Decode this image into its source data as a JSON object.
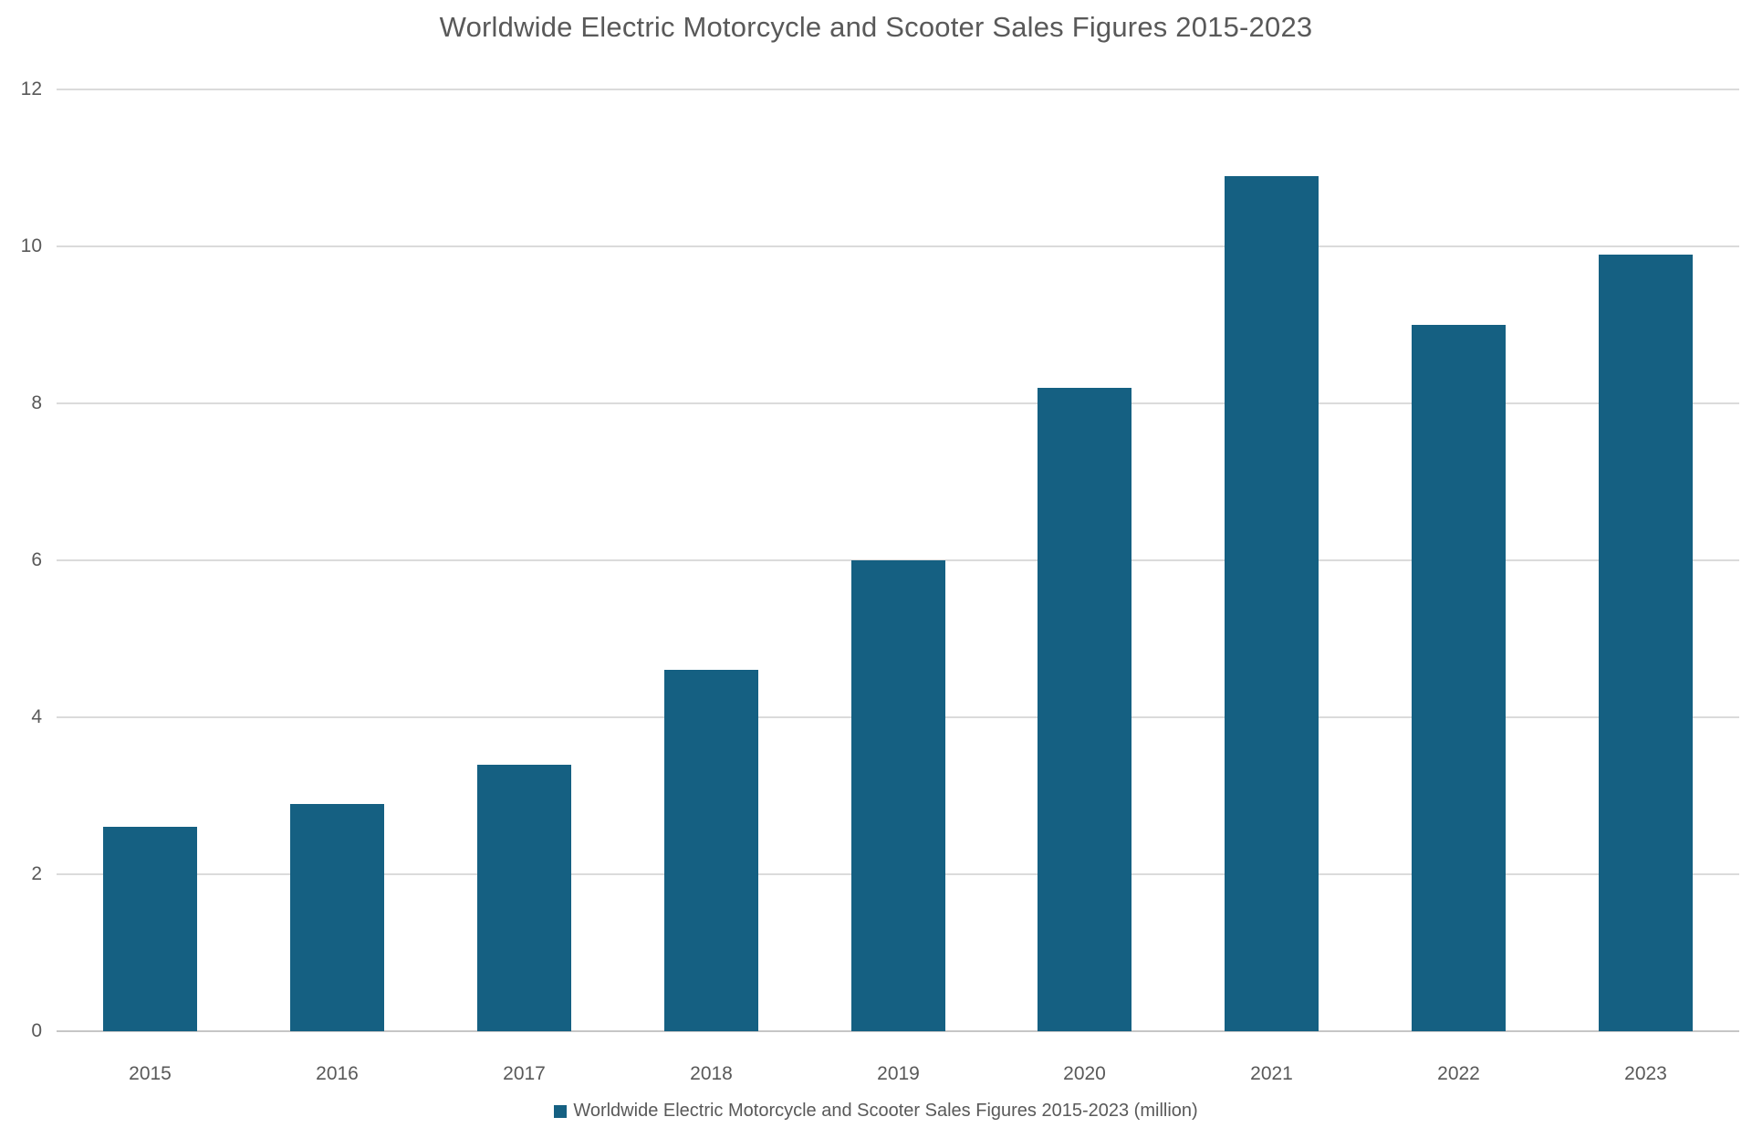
{
  "chart_data": {
    "type": "bar",
    "title": "Worldwide Electric Motorcycle and Scooter Sales Figures 2015-2023",
    "categories": [
      "2015",
      "2016",
      "2017",
      "2018",
      "2019",
      "2020",
      "2021",
      "2022",
      "2023"
    ],
    "series": [
      {
        "name": "Worldwide Electric Motorcycle and Scooter Sales Figures 2015-2023 (million)",
        "values": [
          2.6,
          2.9,
          3.4,
          4.6,
          6.0,
          8.2,
          10.9,
          9.0,
          9.9
        ]
      }
    ],
    "xlabel": "",
    "ylabel": "",
    "ylim": [
      0,
      12
    ],
    "yticks": [
      0,
      2,
      4,
      6,
      8,
      10,
      12
    ],
    "grid": true,
    "legend_position": "bottom",
    "legend_label": "Worldwide Electric Motorcycle and Scooter Sales Figures 2015-2023 (million)",
    "colors": {
      "bar": "#156082",
      "text": "#595959",
      "gridline": "#DBDBDB",
      "axis_line": "#C6C6C6",
      "background": "#FFFFFF"
    }
  }
}
